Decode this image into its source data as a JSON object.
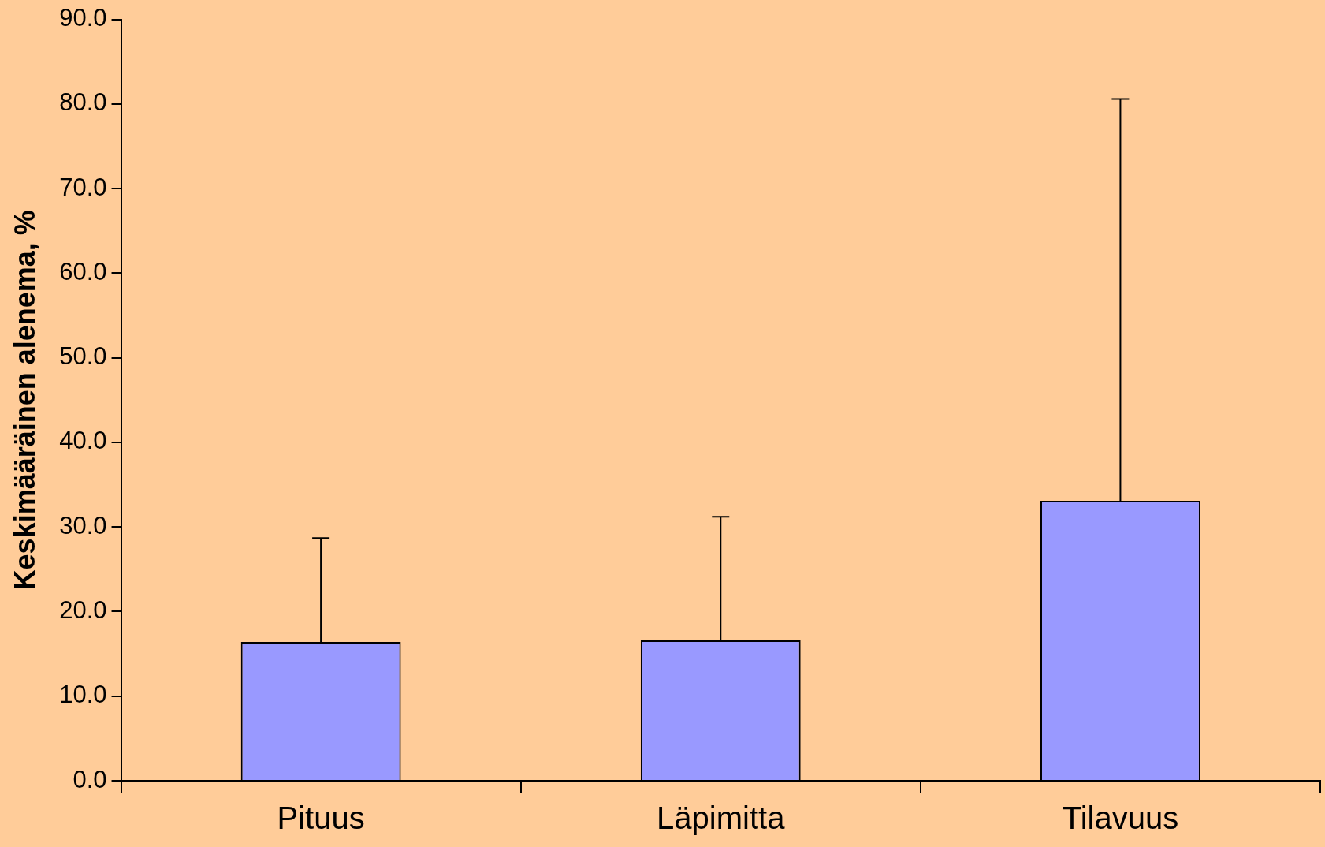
{
  "chart_data": {
    "type": "bar",
    "ylabel": "Keskimääräinen alenema, %",
    "categories": [
      "Pituus",
      "Läpimitta",
      "Tilavuus"
    ],
    "values": [
      16.4,
      16.6,
      33.1
    ],
    "errors": [
      [
        16.4,
        28.7
      ],
      [
        16.6,
        31.2
      ],
      [
        33.1,
        80.6
      ]
    ],
    "color": "#9999ff",
    "ylim": [
      0,
      90
    ],
    "yticks": [
      {
        "value": 0,
        "label": "0.0"
      },
      {
        "value": 10,
        "label": "10.0"
      },
      {
        "value": 20,
        "label": "20.0"
      },
      {
        "value": 30,
        "label": "30.0"
      },
      {
        "value": 40,
        "label": "40.0"
      },
      {
        "value": 50,
        "label": "50.0"
      },
      {
        "value": 60,
        "label": "60.0"
      },
      {
        "value": 70,
        "label": "70.0"
      },
      {
        "value": 80,
        "label": "80.0"
      },
      {
        "value": 90,
        "label": "90.0"
      }
    ],
    "grid": false,
    "legend": false
  }
}
